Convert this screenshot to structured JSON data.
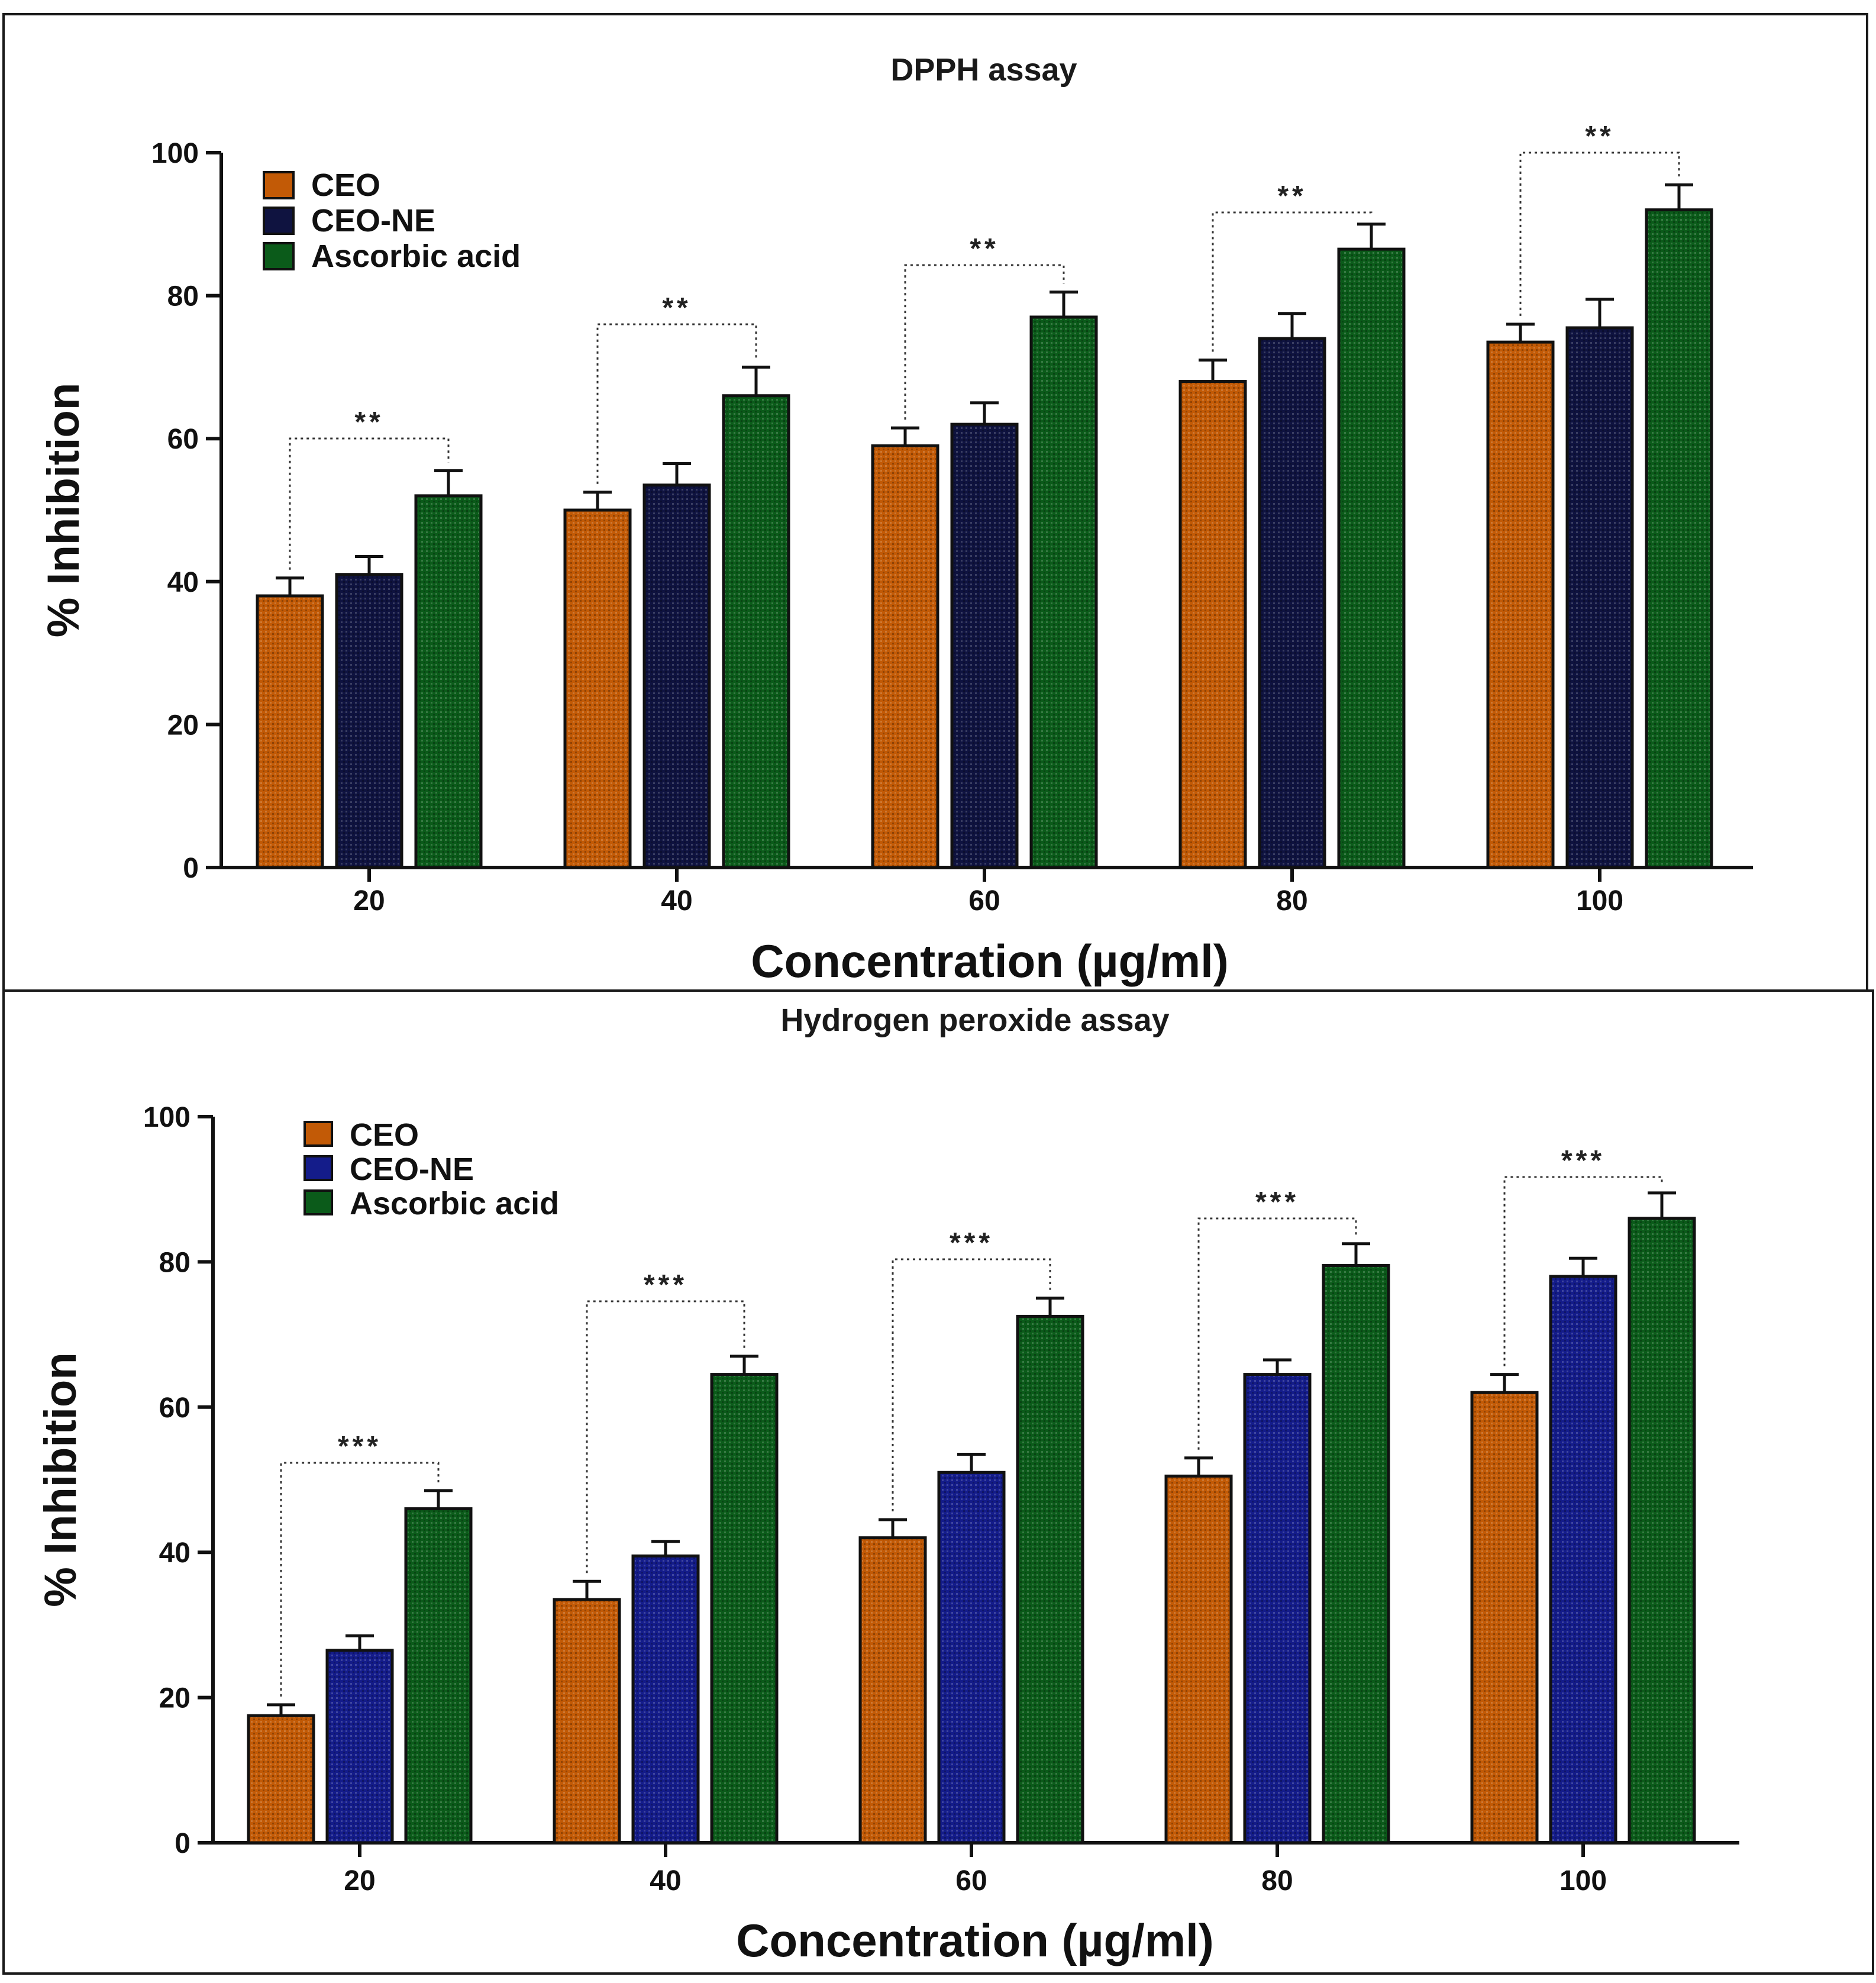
{
  "chart_data": [
    {
      "type": "bar",
      "title": "DPPH assay",
      "xlabel": "Concentration (µg/ml)",
      "ylabel": "% Inhibition",
      "ylim": [
        0,
        100
      ],
      "yticks": [
        "0",
        "20",
        "40",
        "60",
        "80",
        "100"
      ],
      "categories": [
        "20",
        "40",
        "60",
        "80",
        "100"
      ],
      "series": [
        {
          "name": "CEO",
          "color": "#c25a06",
          "values": [
            38,
            50,
            59,
            68,
            73.5
          ],
          "errors": [
            2.5,
            2.5,
            2.5,
            3,
            2.5
          ]
        },
        {
          "name": "CEO-NE",
          "color": "#0f1340",
          "values": [
            41,
            53.5,
            62,
            74,
            75.5
          ],
          "errors": [
            2.5,
            3,
            3,
            3.5,
            4
          ]
        },
        {
          "name": "Ascorbic acid",
          "color": "#0b5b1a",
          "values": [
            52,
            66,
            77,
            86.5,
            92
          ],
          "errors": [
            3.5,
            4,
            3.5,
            3.5,
            3.5
          ]
        }
      ],
      "significance": [
        "**",
        "**",
        "**",
        "**",
        "**"
      ],
      "legend_position": "top-left"
    },
    {
      "type": "bar",
      "title": "Hydrogen peroxide assay",
      "xlabel": "Concentration (µg/ml)",
      "ylabel": "% Inhibition",
      "ylim": [
        0,
        100
      ],
      "yticks": [
        "0",
        "20",
        "40",
        "60",
        "80",
        "100"
      ],
      "categories": [
        "20",
        "40",
        "60",
        "80",
        "100"
      ],
      "series": [
        {
          "name": "CEO",
          "color": "#c25a06",
          "values": [
            17.5,
            33.5,
            42,
            50.5,
            62
          ],
          "errors": [
            1.5,
            2.5,
            2.5,
            2.5,
            2.5
          ]
        },
        {
          "name": "CEO-NE",
          "color": "#141c8a",
          "values": [
            26.5,
            39.5,
            51,
            64.5,
            78
          ],
          "errors": [
            2,
            2,
            2.5,
            2,
            2.5
          ]
        },
        {
          "name": "Ascorbic acid",
          "color": "#0b5b1a",
          "values": [
            46,
            64.5,
            72.5,
            79.5,
            86
          ],
          "errors": [
            2.5,
            2.5,
            2.5,
            3,
            3.5
          ]
        }
      ],
      "significance": [
        "***",
        "***",
        "***",
        "***",
        "***"
      ],
      "legend_position": "top-left"
    }
  ]
}
